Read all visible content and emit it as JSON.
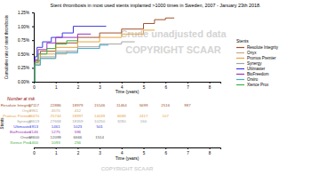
{
  "chart_data": {
    "type": "line",
    "line_style": "step",
    "title": "Stent thrombosis in most used stents implanted >1000 times in Sweden, 2007 - January 23th 2018.",
    "x_label": "Time (years)",
    "y_label": "Cumulative rate of stent thrombosis",
    "annotations": [
      "Crude unadjusted data",
      "COPYRIGHT SCAAR"
    ],
    "legend_title": "Stents",
    "legend": "right",
    "grid": false,
    "xlim": [
      0,
      8.5
    ],
    "xticks": [
      0,
      1,
      2,
      3,
      4,
      5,
      6,
      7,
      8
    ],
    "ylim": [
      0,
      1.25
    ],
    "yticks": [
      {
        "value": 0,
        "label": "0.00%"
      },
      {
        "value": 0.25,
        "label": "0.25%"
      },
      {
        "value": 0.5,
        "label": "0.50%"
      },
      {
        "value": 0.75,
        "label": "0.75%"
      },
      {
        "value": 1,
        "label": "1.00%"
      },
      {
        "value": 1.25,
        "label": "1.25%"
      }
    ],
    "series": [
      {
        "name": "Resolute Integrity",
        "color": "#a0522d",
        "x": [
          0,
          0.05,
          0.3,
          1,
          2,
          3,
          4,
          5,
          5.5,
          6,
          6.4
        ],
        "values": [
          0,
          0.38,
          0.55,
          0.7,
          0.8,
          0.88,
          0.95,
          1.05,
          1.12,
          1.15,
          1.15
        ]
      },
      {
        "name": "Onyx",
        "color": "#c8a882",
        "x": [
          0,
          0.05,
          0.3,
          1,
          1.5,
          2
        ],
        "values": [
          0,
          0.3,
          0.42,
          0.5,
          0.55,
          0.55
        ]
      },
      {
        "name": "Promus Premier",
        "color": "#e8a33d",
        "x": [
          0,
          0.05,
          0.3,
          1,
          2,
          3,
          4,
          5,
          5.5
        ],
        "values": [
          0,
          0.35,
          0.5,
          0.62,
          0.72,
          0.8,
          0.86,
          0.93,
          0.93
        ]
      },
      {
        "name": "Synergy",
        "color": "#a5a5a5",
        "x": [
          0,
          0.05,
          0.3,
          1,
          2,
          3,
          4,
          4.6
        ],
        "values": [
          0,
          0.32,
          0.45,
          0.55,
          0.63,
          0.68,
          0.72,
          0.72
        ]
      },
      {
        "name": "Ultimaster",
        "color": "#3a3ae0",
        "x": [
          0,
          0.05,
          0.15,
          0.4,
          0.8,
          1.3,
          1.8,
          3.3
        ],
        "values": [
          0,
          0.45,
          0.62,
          0.72,
          0.8,
          0.88,
          1.0,
          1.0
        ]
      },
      {
        "name": "BioFreedom",
        "color": "#9b30c0",
        "x": [
          0,
          0.05,
          0.2,
          0.6,
          1,
          2,
          2.6
        ],
        "values": [
          0,
          0.4,
          0.58,
          0.7,
          0.8,
          0.86,
          0.86
        ]
      },
      {
        "name": "Orsiro",
        "color": "#4bacc6",
        "x": [
          0,
          0.05,
          0.3,
          1,
          2,
          3,
          3.4
        ],
        "values": [
          0,
          0.3,
          0.42,
          0.52,
          0.6,
          0.66,
          0.66
        ]
      },
      {
        "name": "Xience Prox",
        "color": "#3cb043",
        "x": [
          0,
          0.05,
          0.2,
          0.6,
          1,
          1.5,
          2
        ],
        "values": [
          0,
          0.35,
          0.5,
          0.6,
          0.68,
          0.74,
          0.74
        ]
      }
    ]
  },
  "risk_table": {
    "title": "Number at risk",
    "axis_label": "Stents",
    "x_label": "Time (years)",
    "columns": [
      0,
      1,
      2,
      3,
      4,
      5,
      6,
      7,
      8
    ],
    "rows": [
      {
        "name": "Resolute Integrity",
        "color": "#a0522d",
        "values": [
          27117,
          22886,
          18979,
          15146,
          11464,
          5699,
          2516,
          987,
          null
        ]
      },
      {
        "name": "Onyx",
        "color": "#c8a882",
        "values": [
          9961,
          4570,
          412,
          null,
          null,
          null,
          null,
          null,
          null
        ]
      },
      {
        "name": "Promus Premier",
        "color": "#e8a33d",
        "values": [
          33470,
          25744,
          18997,
          14039,
          6688,
          2417,
          107,
          null,
          null
        ]
      },
      {
        "name": "Synergy",
        "color": "#a5a5a5",
        "values": [
          38619,
          27668,
          18359,
          10250,
          3280,
          160,
          null,
          null,
          null
        ]
      },
      {
        "name": "Ultimaster",
        "color": "#3a3ae0",
        "values": [
          1913,
          1461,
          1023,
          501,
          null,
          null,
          null,
          null,
          null
        ]
      },
      {
        "name": "BioFreedom",
        "color": "#9b30c0",
        "values": [
          2146,
          1275,
          596,
          null,
          null,
          null,
          null,
          null,
          null
        ]
      },
      {
        "name": "Orsiro",
        "color": "#555555",
        "values": [
          18600,
          12098,
          6666,
          1514,
          null,
          null,
          null,
          null,
          null
        ]
      },
      {
        "name": "Xience Prox",
        "color": "#3cb043",
        "values": [
          1400,
          1093,
          256,
          null,
          null,
          null,
          null,
          null,
          null
        ]
      }
    ]
  },
  "footer": "COPYRIGHT SCAAR"
}
